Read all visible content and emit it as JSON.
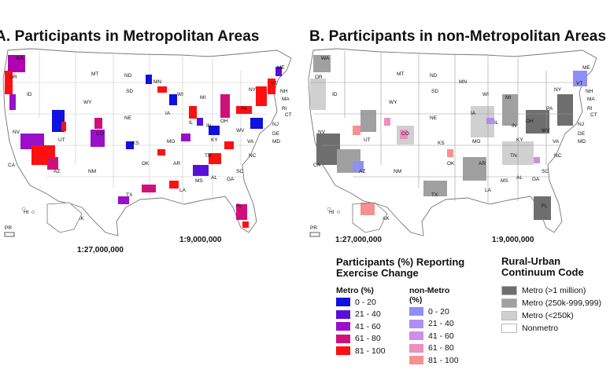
{
  "panels": {
    "a": {
      "title": "A. Participants in Metropolitan Areas",
      "scale_inset": "1:27,000,000",
      "scale_main": "1:9,000,000"
    },
    "b": {
      "title": "B. Participants in non-Metropolitan Areas",
      "scale_inset": "1:27,000,000",
      "scale_main": "1:9,000,000"
    }
  },
  "state_labels": [
    "WA",
    "OR",
    "MT",
    "ND",
    "MN",
    "ID",
    "SD",
    "WI",
    "WY",
    "NV",
    "UT",
    "CO",
    "NE",
    "IA",
    "IL",
    "IN",
    "OH",
    "PA",
    "NY",
    "MI",
    "KS",
    "MO",
    "KY",
    "WV",
    "VA",
    "CA",
    "AZ",
    "NM",
    "OK",
    "AR",
    "TN",
    "NC",
    "SC",
    "TX",
    "LA",
    "MS",
    "AL",
    "GA",
    "FL",
    "AK",
    "HI",
    "PR",
    "ME",
    "VT",
    "NH",
    "MA",
    "RI",
    "CT",
    "NJ",
    "DE",
    "MD"
  ],
  "legend_exercise": {
    "title_line1": "Participants (%) Reporting",
    "title_line2": "Exercise Change",
    "metro_header": "Metro (%)",
    "nonmetro_header": "non-Metro (%)",
    "metro_items": [
      {
        "label": "0 - 20",
        "color": "#1010e0"
      },
      {
        "label": "21 - 40",
        "color": "#5a0fd8"
      },
      {
        "label": "41 - 60",
        "color": "#9a10c8"
      },
      {
        "label": "61 - 80",
        "color": "#d0107a"
      },
      {
        "label": "81 - 100",
        "color": "#ff1010"
      }
    ],
    "nonmetro_items": [
      {
        "label": "0 - 20",
        "color": "#8f8ff5"
      },
      {
        "label": "21 - 40",
        "color": "#b08ef2"
      },
      {
        "label": "41 - 60",
        "color": "#cc90e8"
      },
      {
        "label": "61 - 80",
        "color": "#ec90c0"
      },
      {
        "label": "81 - 100",
        "color": "#f79090"
      }
    ]
  },
  "legend_rucc": {
    "title_line1": "Rural-Urban",
    "title_line2": "Continuum Code",
    "items": [
      {
        "label": "Metro (>1 million)",
        "color": "#6e6e6e"
      },
      {
        "label": "Metro (250k-999,999)",
        "color": "#a0a0a0"
      },
      {
        "label": "Metro (<250k)",
        "color": "#d0d0d0"
      },
      {
        "label": "Nonmetro",
        "color": "#ffffff"
      }
    ]
  }
}
